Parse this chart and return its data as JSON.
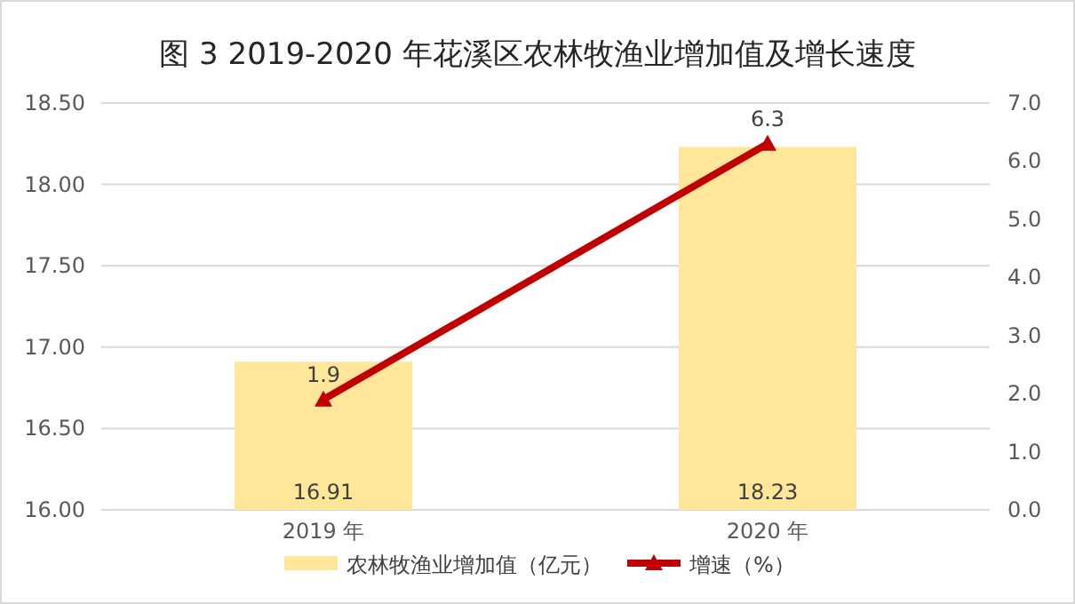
{
  "chart_data": {
    "type": "bar",
    "title": "图 3  2019-2020 年花溪区农林牧渔业增加值及增长速度",
    "categories": [
      "2019 年",
      "2020 年"
    ],
    "series": [
      {
        "name": "农林牧渔业增加值（亿元）",
        "color": "#ffe699",
        "values": [
          16.91,
          18.23
        ]
      },
      {
        "name": "增速（%）",
        "type": "line",
        "axis": "y2",
        "color": "#c00000",
        "values": [
          1.9,
          6.3
        ]
      }
    ],
    "ylim": [
      16,
      18.5
    ],
    "yticks": [
      {
        "value": 16,
        "label": "16.00"
      },
      {
        "value": 16.5,
        "label": "16.50"
      },
      {
        "value": 17,
        "label": "17.00"
      },
      {
        "value": 17.5,
        "label": "17.50"
      },
      {
        "value": 18,
        "label": "18.00"
      },
      {
        "value": 18.5,
        "label": "18.50"
      }
    ],
    "y2lim": [
      0,
      7
    ],
    "y2ticks": [
      {
        "value": 0,
        "label": "0.0"
      },
      {
        "value": 1,
        "label": "1.0"
      },
      {
        "value": 2,
        "label": "2.0"
      },
      {
        "value": 3,
        "label": "3.0"
      },
      {
        "value": 4,
        "label": "4.0"
      },
      {
        "value": 5,
        "label": "5.0"
      },
      {
        "value": 6,
        "label": "6.0"
      },
      {
        "value": 7,
        "label": "7.0"
      }
    ],
    "grid": "y",
    "legend": "bottom",
    "marker": "triangle",
    "data_labels": true
  }
}
